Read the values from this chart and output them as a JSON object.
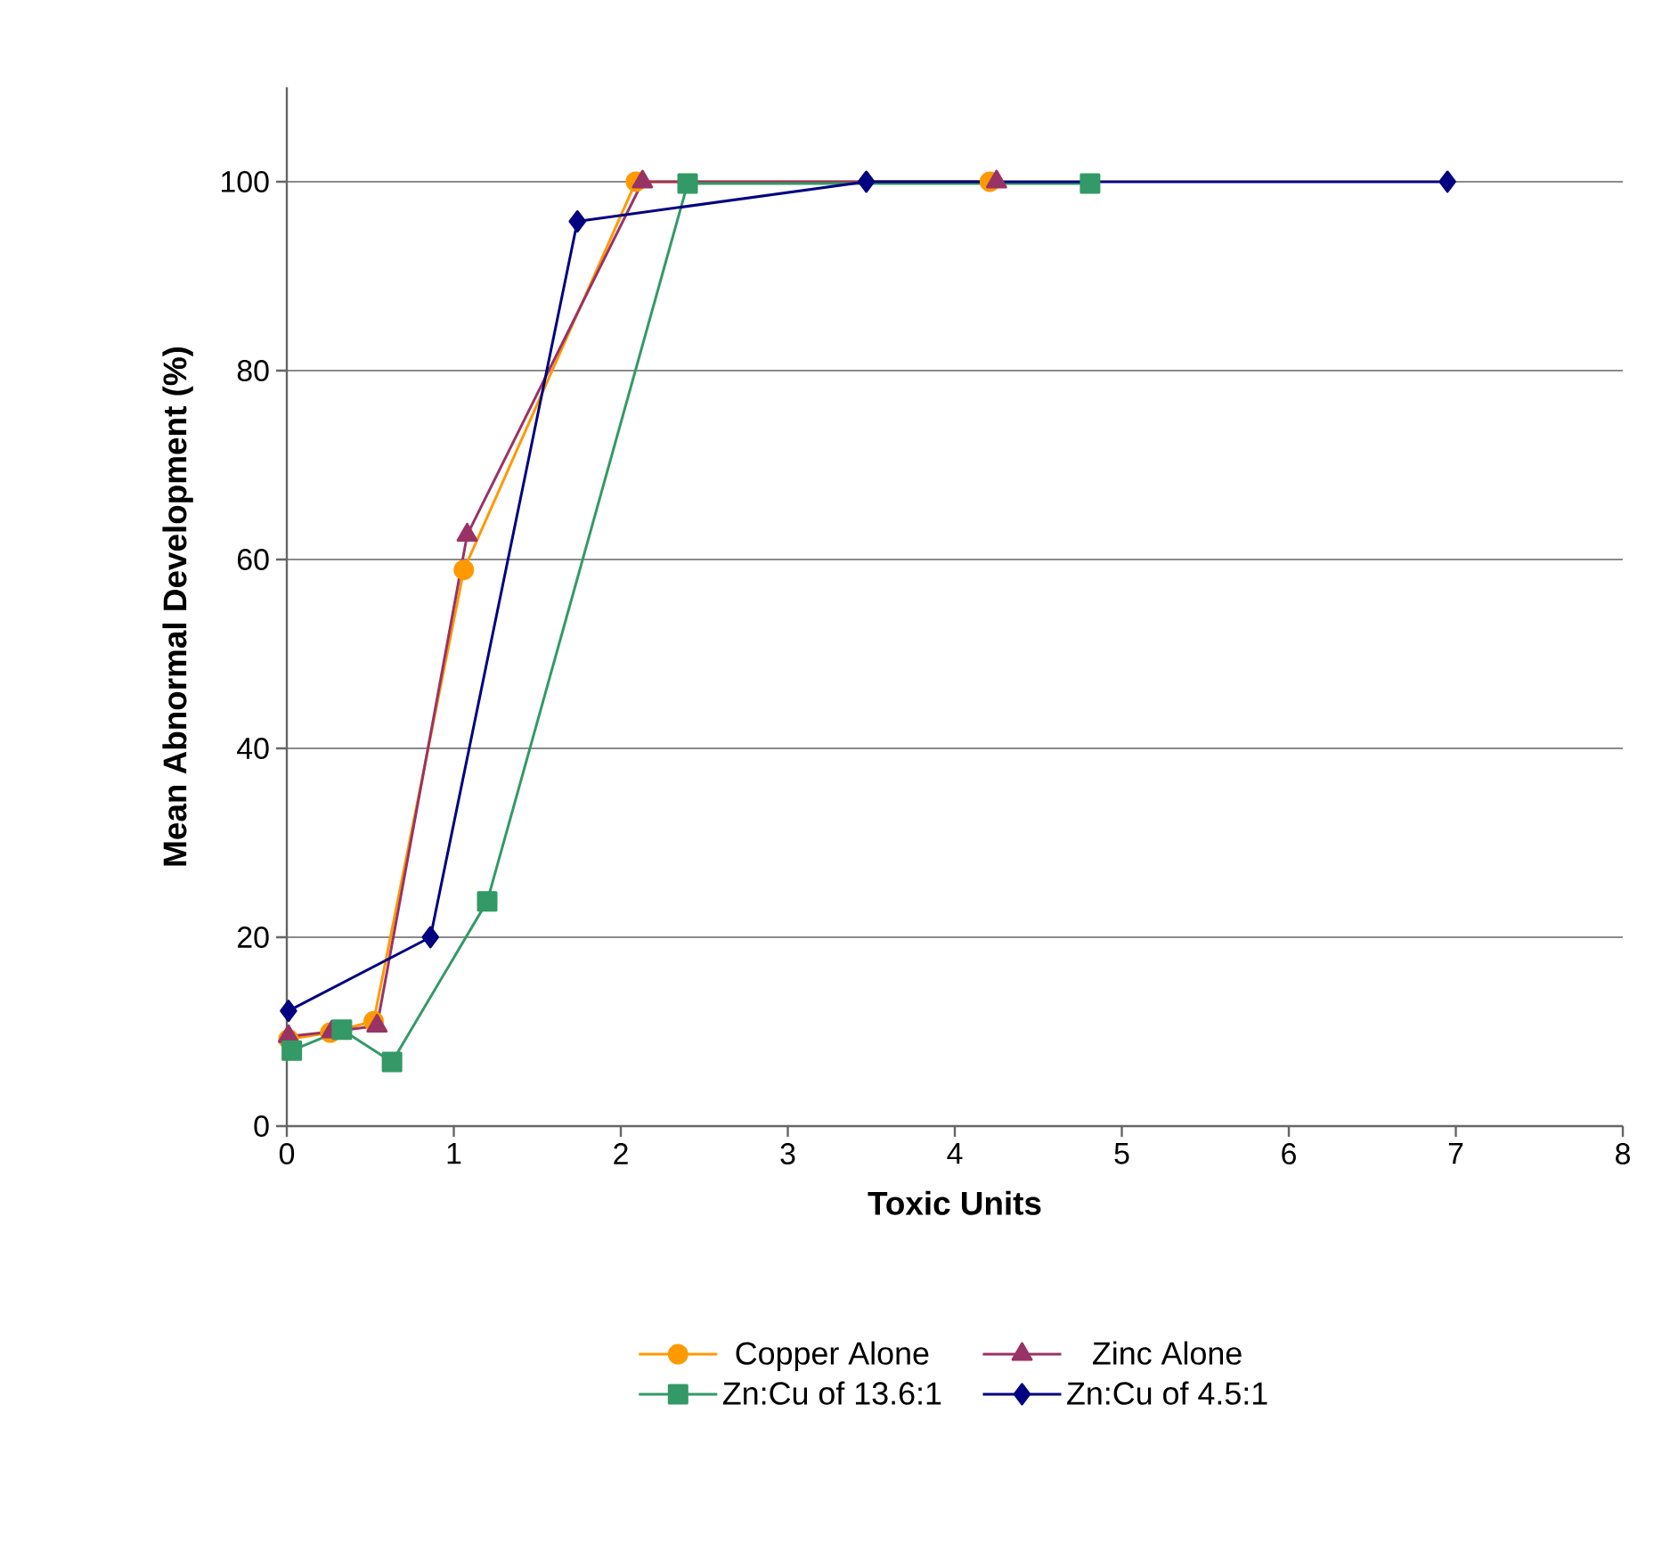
{
  "chart_data": {
    "type": "line",
    "xlabel": "Toxic Units",
    "ylabel": "Mean Abnormal Development (%)",
    "xlim": [
      0,
      8
    ],
    "ylim": [
      0,
      110
    ],
    "xticks": [
      0,
      1,
      2,
      3,
      4,
      5,
      6,
      7,
      8
    ],
    "yticks": [
      0,
      20,
      40,
      60,
      80,
      100
    ],
    "grid": "y",
    "legend": "bottom",
    "line_style": "solid",
    "series": [
      {
        "name": "Copper Alone",
        "color": "#ff9900",
        "marker": "circle",
        "x": [
          0.01,
          0.26,
          0.52,
          1.06,
          2.09,
          4.21
        ],
        "values": [
          9.2,
          9.9,
          11.1,
          58.9,
          100,
          100
        ]
      },
      {
        "name": "Zinc Alone",
        "color": "#993366",
        "marker": "triangle",
        "x": [
          0.01,
          0.27,
          0.54,
          1.08,
          2.13,
          4.25
        ],
        "values": [
          9.5,
          10,
          10.6,
          62.6,
          100,
          100
        ]
      },
      {
        "name": "Zn:Cu of 13.6:1",
        "color": "#339966",
        "marker": "square",
        "x": [
          0.03,
          0.33,
          0.63,
          1.2,
          2.4,
          4.81
        ],
        "values": [
          8,
          10.2,
          6.8,
          23.8,
          99.8,
          99.8
        ]
      },
      {
        "name": "Zn:Cu of 4.5:1",
        "color": "#000080",
        "marker": "diamond",
        "x": [
          0.01,
          0.86,
          1.74,
          3.47,
          6.95
        ],
        "values": [
          12.2,
          20,
          95.8,
          100,
          100
        ]
      }
    ]
  }
}
